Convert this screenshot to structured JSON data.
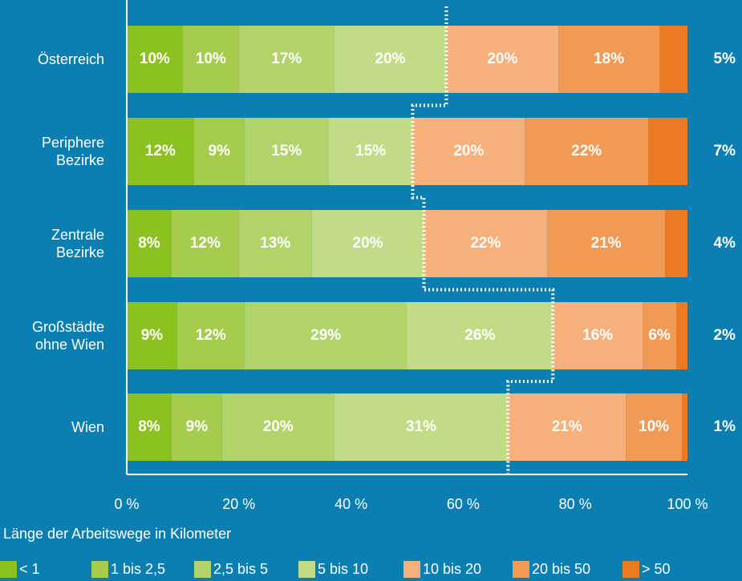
{
  "chart_data": {
    "type": "stacked-bar-horizontal",
    "categories": [
      "Österreich",
      "Periphere\nBezirke",
      "Zentrale\nBezirke",
      "Großstädte\nohne Wien",
      "Wien"
    ],
    "series": [
      {
        "name": "< 1",
        "color": "#8cc21f",
        "values": [
          10,
          12,
          8,
          9,
          8
        ],
        "value_labels": [
          "10%",
          "12%",
          "8%",
          "9%",
          "8%"
        ]
      },
      {
        "name": "1 bis 2,5",
        "color": "#a5cc4d",
        "values": [
          10,
          9,
          12,
          12,
          9
        ],
        "value_labels": [
          "10%",
          "9%",
          "12%",
          "12%",
          "9%"
        ]
      },
      {
        "name": "2,5 bis 5",
        "color": "#b2d36a",
        "values": [
          17,
          15,
          13,
          29,
          20
        ],
        "value_labels": [
          "17%",
          "15%",
          "13%",
          "29%",
          "20%"
        ]
      },
      {
        "name": "5 bis 10",
        "color": "#c2db86",
        "values": [
          20,
          15,
          20,
          26,
          31
        ],
        "value_labels": [
          "20%",
          "15%",
          "20%",
          "26%",
          "31%"
        ]
      },
      {
        "name": "10 bis 20",
        "color": "#f5b07b",
        "values": [
          20,
          20,
          22,
          16,
          21
        ],
        "value_labels": [
          "20%",
          "20%",
          "22%",
          "16%",
          "21%"
        ]
      },
      {
        "name": "20 bis 50",
        "color": "#f19a56",
        "values": [
          18,
          22,
          21,
          6,
          10
        ],
        "value_labels": [
          "18%",
          "22%",
          "21%",
          "6%",
          "10%"
        ]
      },
      {
        "name": "> 50",
        "color": "#ec7a22",
        "values": [
          5,
          7,
          4,
          2,
          1
        ],
        "value_labels": [
          "5%",
          "7%",
          "4%",
          "2%",
          "1%"
        ]
      }
    ],
    "xlim": [
      0,
      100
    ],
    "xticks": [
      {
        "value": 0,
        "label": "0 %"
      },
      {
        "value": 20,
        "label": "20 %"
      },
      {
        "value": 40,
        "label": "40 %"
      },
      {
        "value": 60,
        "label": "60 %"
      },
      {
        "value": 80,
        "label": "80 %"
      },
      {
        "value": 100,
        "label": "100 %"
      }
    ],
    "legend_title": "Länge der Arbeitswege in Kilometer",
    "legend": "bottom"
  }
}
